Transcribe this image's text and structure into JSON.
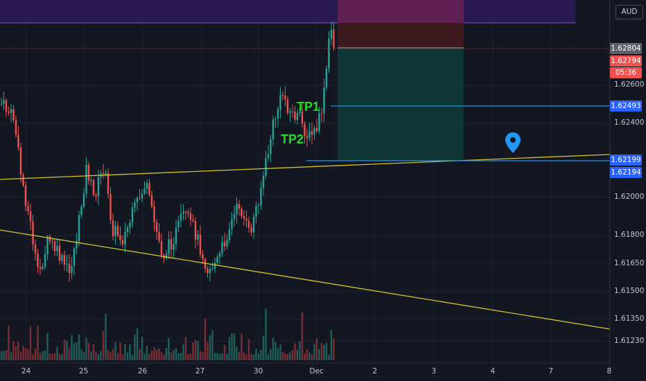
{
  "currency": "AUD",
  "price_axis": {
    "ticks": [
      "1.62600",
      "1.62400",
      "1.62000",
      "1.61800",
      "1.61650",
      "1.61500",
      "1.61350",
      "1.61230"
    ]
  },
  "price_tags": [
    {
      "id": "last-a",
      "text": "1.62804",
      "bg": "#5d606b",
      "fg": "#ffffff"
    },
    {
      "id": "last-b",
      "text": "1.62794",
      "bg": "#ef5350",
      "fg": "#ffffff"
    },
    {
      "id": "countdown",
      "text": "05:36",
      "bg": "#ef5350",
      "fg": "#ffffff"
    },
    {
      "id": "tp1",
      "text": "1.62493",
      "bg": "#2962ff",
      "fg": "#ffffff"
    },
    {
      "id": "level-a",
      "text": "1.62199",
      "bg": "#2962ff",
      "fg": "#ffffff"
    },
    {
      "id": "level-b",
      "text": "1.62194",
      "bg": "#2962ff",
      "fg": "#ffffff"
    }
  ],
  "time_axis": {
    "labels": [
      "24",
      "25",
      "26",
      "27",
      "30",
      "Dec",
      "2",
      "3",
      "4",
      "7",
      "8"
    ]
  },
  "annotations": {
    "tp1": "TP1",
    "tp2": "TP2"
  },
  "colors": {
    "background": "#131722",
    "up": "#26a69a",
    "down": "#ef5350",
    "trendline": "#d4c52a",
    "hline": "#2196f3",
    "zone_top": "#2a1850",
    "stop_zone": "#3d1a1e",
    "target_zone": "#0e3634"
  },
  "chart_data": {
    "type": "candlestick",
    "symbol_currency": "AUD",
    "ylim": [
      1.6118,
      1.6298
    ],
    "last_price": 1.62794,
    "levels": [
      1.62804,
      1.62493,
      1.62199,
      1.62194
    ]
  }
}
